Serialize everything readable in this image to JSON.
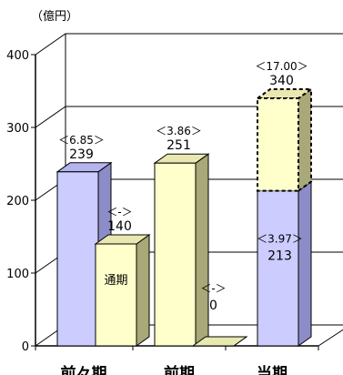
{
  "chart_data": {
    "type": "bar",
    "unit_label": "（億円）",
    "y_ticks": [
      0,
      100,
      200,
      300,
      400
    ],
    "ylim": [
      0,
      400
    ],
    "categories": [
      "前々期",
      "前期",
      "当期"
    ],
    "bars": [
      {
        "category_index": 0,
        "offset": "left",
        "fill": "blue",
        "style": "solid",
        "value": 239,
        "value_label": "239",
        "bracket_label": "＜6.85＞",
        "inner_label": ""
      },
      {
        "category_index": 0,
        "offset": "right",
        "fill": "yellow",
        "style": "solid",
        "value": 140,
        "value_label": "140",
        "bracket_label": "＜-＞",
        "inner_label": "通期"
      },
      {
        "category_index": 1,
        "offset": "left",
        "fill": "yellow",
        "style": "solid",
        "value": 251,
        "value_label": "251",
        "bracket_label": "＜3.86＞",
        "inner_label": ""
      },
      {
        "category_index": 1,
        "offset": "right",
        "fill": "yellow",
        "style": "solid",
        "value": 0,
        "value_label": "0",
        "bracket_label": "＜-＞",
        "inner_label": ""
      },
      {
        "category_index": 2,
        "offset": "center",
        "fill": "blue",
        "style": "solid",
        "value": 213,
        "value_label": "213",
        "bracket_label": "＜3.97＞",
        "inner_label": ""
      },
      {
        "category_index": 2,
        "offset": "center",
        "fill": "yellow",
        "style": "dashed",
        "base": 213,
        "value": 340,
        "value_label": "340",
        "bracket_label": "＜17.00＞",
        "inner_label": ""
      }
    ],
    "colors": {
      "blue_front": "#ccccff",
      "blue_side": "#8c8cc8",
      "blue_top": "#b4b4ee",
      "yellow_front": "#ffffcc",
      "yellow_side": "#a8a878",
      "yellow_top": "#e8e8b0",
      "axis": "#000000",
      "grid": "#000000"
    }
  }
}
